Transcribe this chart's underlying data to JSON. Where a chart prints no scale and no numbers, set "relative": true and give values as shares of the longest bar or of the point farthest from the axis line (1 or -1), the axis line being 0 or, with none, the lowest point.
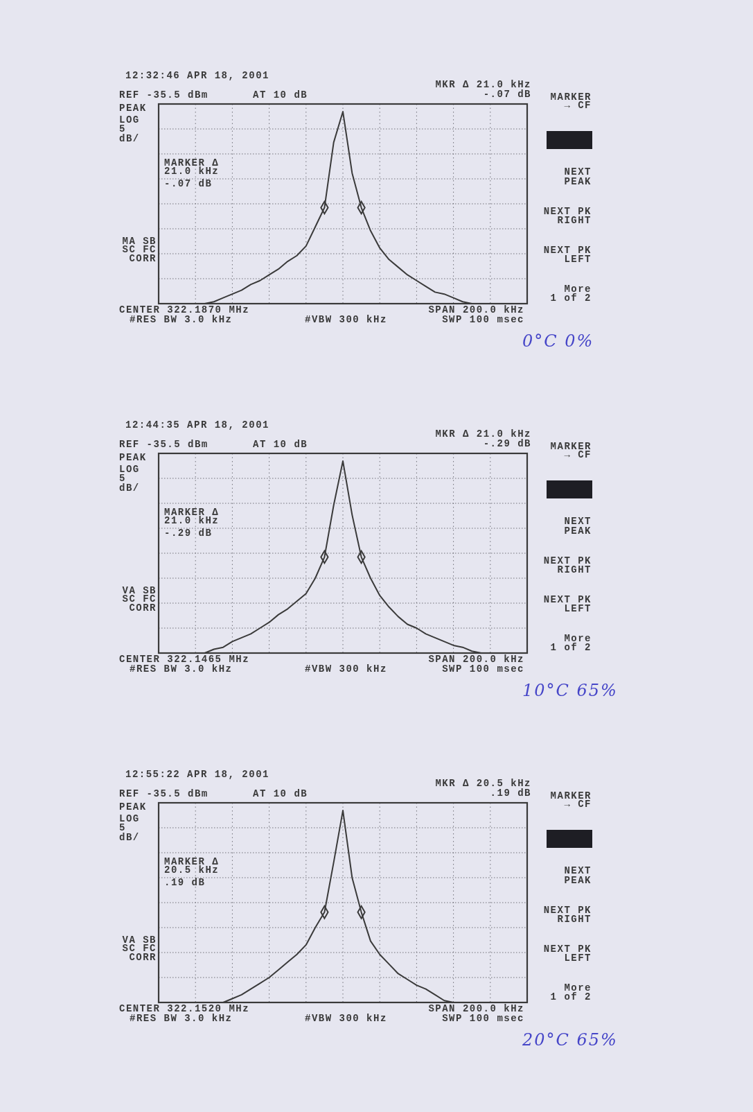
{
  "chart_data": [
    {
      "type": "line",
      "title": "12:32:46 APR 18, 2001",
      "relative": true,
      "grid": true,
      "categories": [
        null,
        null,
        null,
        null,
        null,
        null,
        null,
        null,
        null,
        null,
        null,
        null,
        null,
        null,
        null,
        null,
        null,
        null,
        null,
        null,
        null,
        null,
        null,
        null,
        null,
        null,
        null,
        null,
        null,
        null,
        null,
        null,
        null,
        null,
        null,
        null,
        null,
        null,
        null,
        null,
        null
      ],
      "series": [
        {
          "color": "#3a3a3a",
          "line_style": "solid",
          "values": [
            0,
            0,
            0,
            0,
            0,
            0,
            0.01,
            0.03,
            0.05,
            0.07,
            0.1,
            0.12,
            0.15,
            0.18,
            0.22,
            0.25,
            0.3,
            0.4,
            0.5,
            0.84,
            1,
            0.68,
            0.5,
            0.38,
            0.29,
            0.23,
            0.19,
            0.15,
            0.12,
            0.09,
            0.06,
            0.05,
            0.03,
            0.01,
            0,
            0,
            0,
            0,
            0,
            0,
            0
          ]
        }
      ],
      "annotations": [
        "REF -35.5 dBm",
        "AT 10 dB",
        "MKR Δ 21.0 kHz",
        "-.07 dB",
        "PEAK",
        "LOG",
        "5",
        "dB/",
        "MARKER Δ",
        "21.0 kHz",
        "-.07 dB",
        "MA SB",
        "SC FC",
        "CORR",
        "CENTER 322.1870 MHz",
        "#RES BW 3.0 kHz",
        "#VBW 300 kHz",
        "SPAN 200.0 kHz",
        "SWP 100 msec",
        "MARKER",
        "→ CF",
        "NEXT",
        "PEAK",
        "NEXT PK",
        "RIGHT",
        "NEXT PK",
        "LEFT",
        "More",
        "1 of 2",
        "0°C 0%"
      ]
    },
    {
      "type": "line",
      "title": "12:44:35 APR 18, 2001",
      "relative": true,
      "grid": true,
      "categories": [
        null,
        null,
        null,
        null,
        null,
        null,
        null,
        null,
        null,
        null,
        null,
        null,
        null,
        null,
        null,
        null,
        null,
        null,
        null,
        null,
        null,
        null,
        null,
        null,
        null,
        null,
        null,
        null,
        null,
        null,
        null,
        null,
        null,
        null,
        null,
        null,
        null,
        null,
        null,
        null,
        null
      ],
      "series": [
        {
          "color": "#3a3a3a",
          "line_style": "solid",
          "values": [
            0,
            0,
            0,
            0,
            0,
            0.0,
            0.02,
            0.03,
            0.06,
            0.08,
            0.1,
            0.13,
            0.16,
            0.2,
            0.23,
            0.27,
            0.31,
            0.39,
            0.5,
            0.77,
            1,
            0.72,
            0.5,
            0.39,
            0.3,
            0.24,
            0.19,
            0.15,
            0.13,
            0.1,
            0.08,
            0.06,
            0.04,
            0.03,
            0.01,
            0,
            0,
            0,
            0,
            0,
            0
          ]
        }
      ],
      "annotations": [
        "REF -35.5 dBm",
        "AT 10 dB",
        "MKR Δ 21.0 kHz",
        "-.29 dB",
        "PEAK",
        "LOG",
        "5",
        "dB/",
        "MARKER Δ",
        "21.0 kHz",
        "-.29 dB",
        "VA SB",
        "SC FC",
        "CORR",
        "CENTER 322.1465 MHz",
        "#RES BW 3.0 kHz",
        "#VBW 300 kHz",
        "SPAN 200.0 kHz",
        "SWP 100 msec",
        "MARKER",
        "→ CF",
        "NEXT",
        "PEAK",
        "NEXT PK",
        "RIGHT",
        "NEXT PK",
        "LEFT",
        "More",
        "1 of 2",
        "10°C 65%"
      ]
    },
    {
      "type": "line",
      "title": "12:55:22 APR 18, 2001",
      "relative": true,
      "grid": true,
      "categories": [
        null,
        null,
        null,
        null,
        null,
        null,
        null,
        null,
        null,
        null,
        null,
        null,
        null,
        null,
        null,
        null,
        null,
        null,
        null,
        null,
        null,
        null,
        null,
        null,
        null,
        null,
        null,
        null,
        null,
        null,
        null,
        null,
        null,
        null,
        null,
        null,
        null,
        null,
        null,
        null,
        null
      ],
      "series": [
        {
          "color": "#3a3a3a",
          "line_style": "solid",
          "values": [
            0,
            0,
            0,
            0,
            0,
            0,
            0,
            0,
            0.02,
            0.04,
            0.07,
            0.1,
            0.13,
            0.17,
            0.21,
            0.25,
            0.3,
            0.39,
            0.47,
            0.73,
            1,
            0.65,
            0.47,
            0.32,
            0.25,
            0.2,
            0.15,
            0.12,
            0.09,
            0.07,
            0.04,
            0.01,
            0,
            0,
            0,
            0,
            0,
            0,
            0,
            0,
            0
          ]
        }
      ],
      "annotations": [
        "REF -35.5 dBm",
        "AT 10 dB",
        "MKR Δ 20.5 kHz",
        ".19 dB",
        "PEAK",
        "LOG",
        "5",
        "dB/",
        "MARKER Δ",
        "20.5 kHz",
        ".19 dB",
        "VA SB",
        "SC FC",
        "CORR",
        "CENTER 322.1520 MHz",
        "#RES BW 3.0 kHz",
        "#VBW 300 kHz",
        "SPAN 200.0 kHz",
        "SWP 100 msec",
        "MARKER",
        "→ CF",
        "NEXT",
        "PEAK",
        "NEXT PK",
        "RIGHT",
        "NEXT PK",
        "LEFT",
        "More",
        "1 of 2",
        "20°C 65%"
      ]
    }
  ]
}
